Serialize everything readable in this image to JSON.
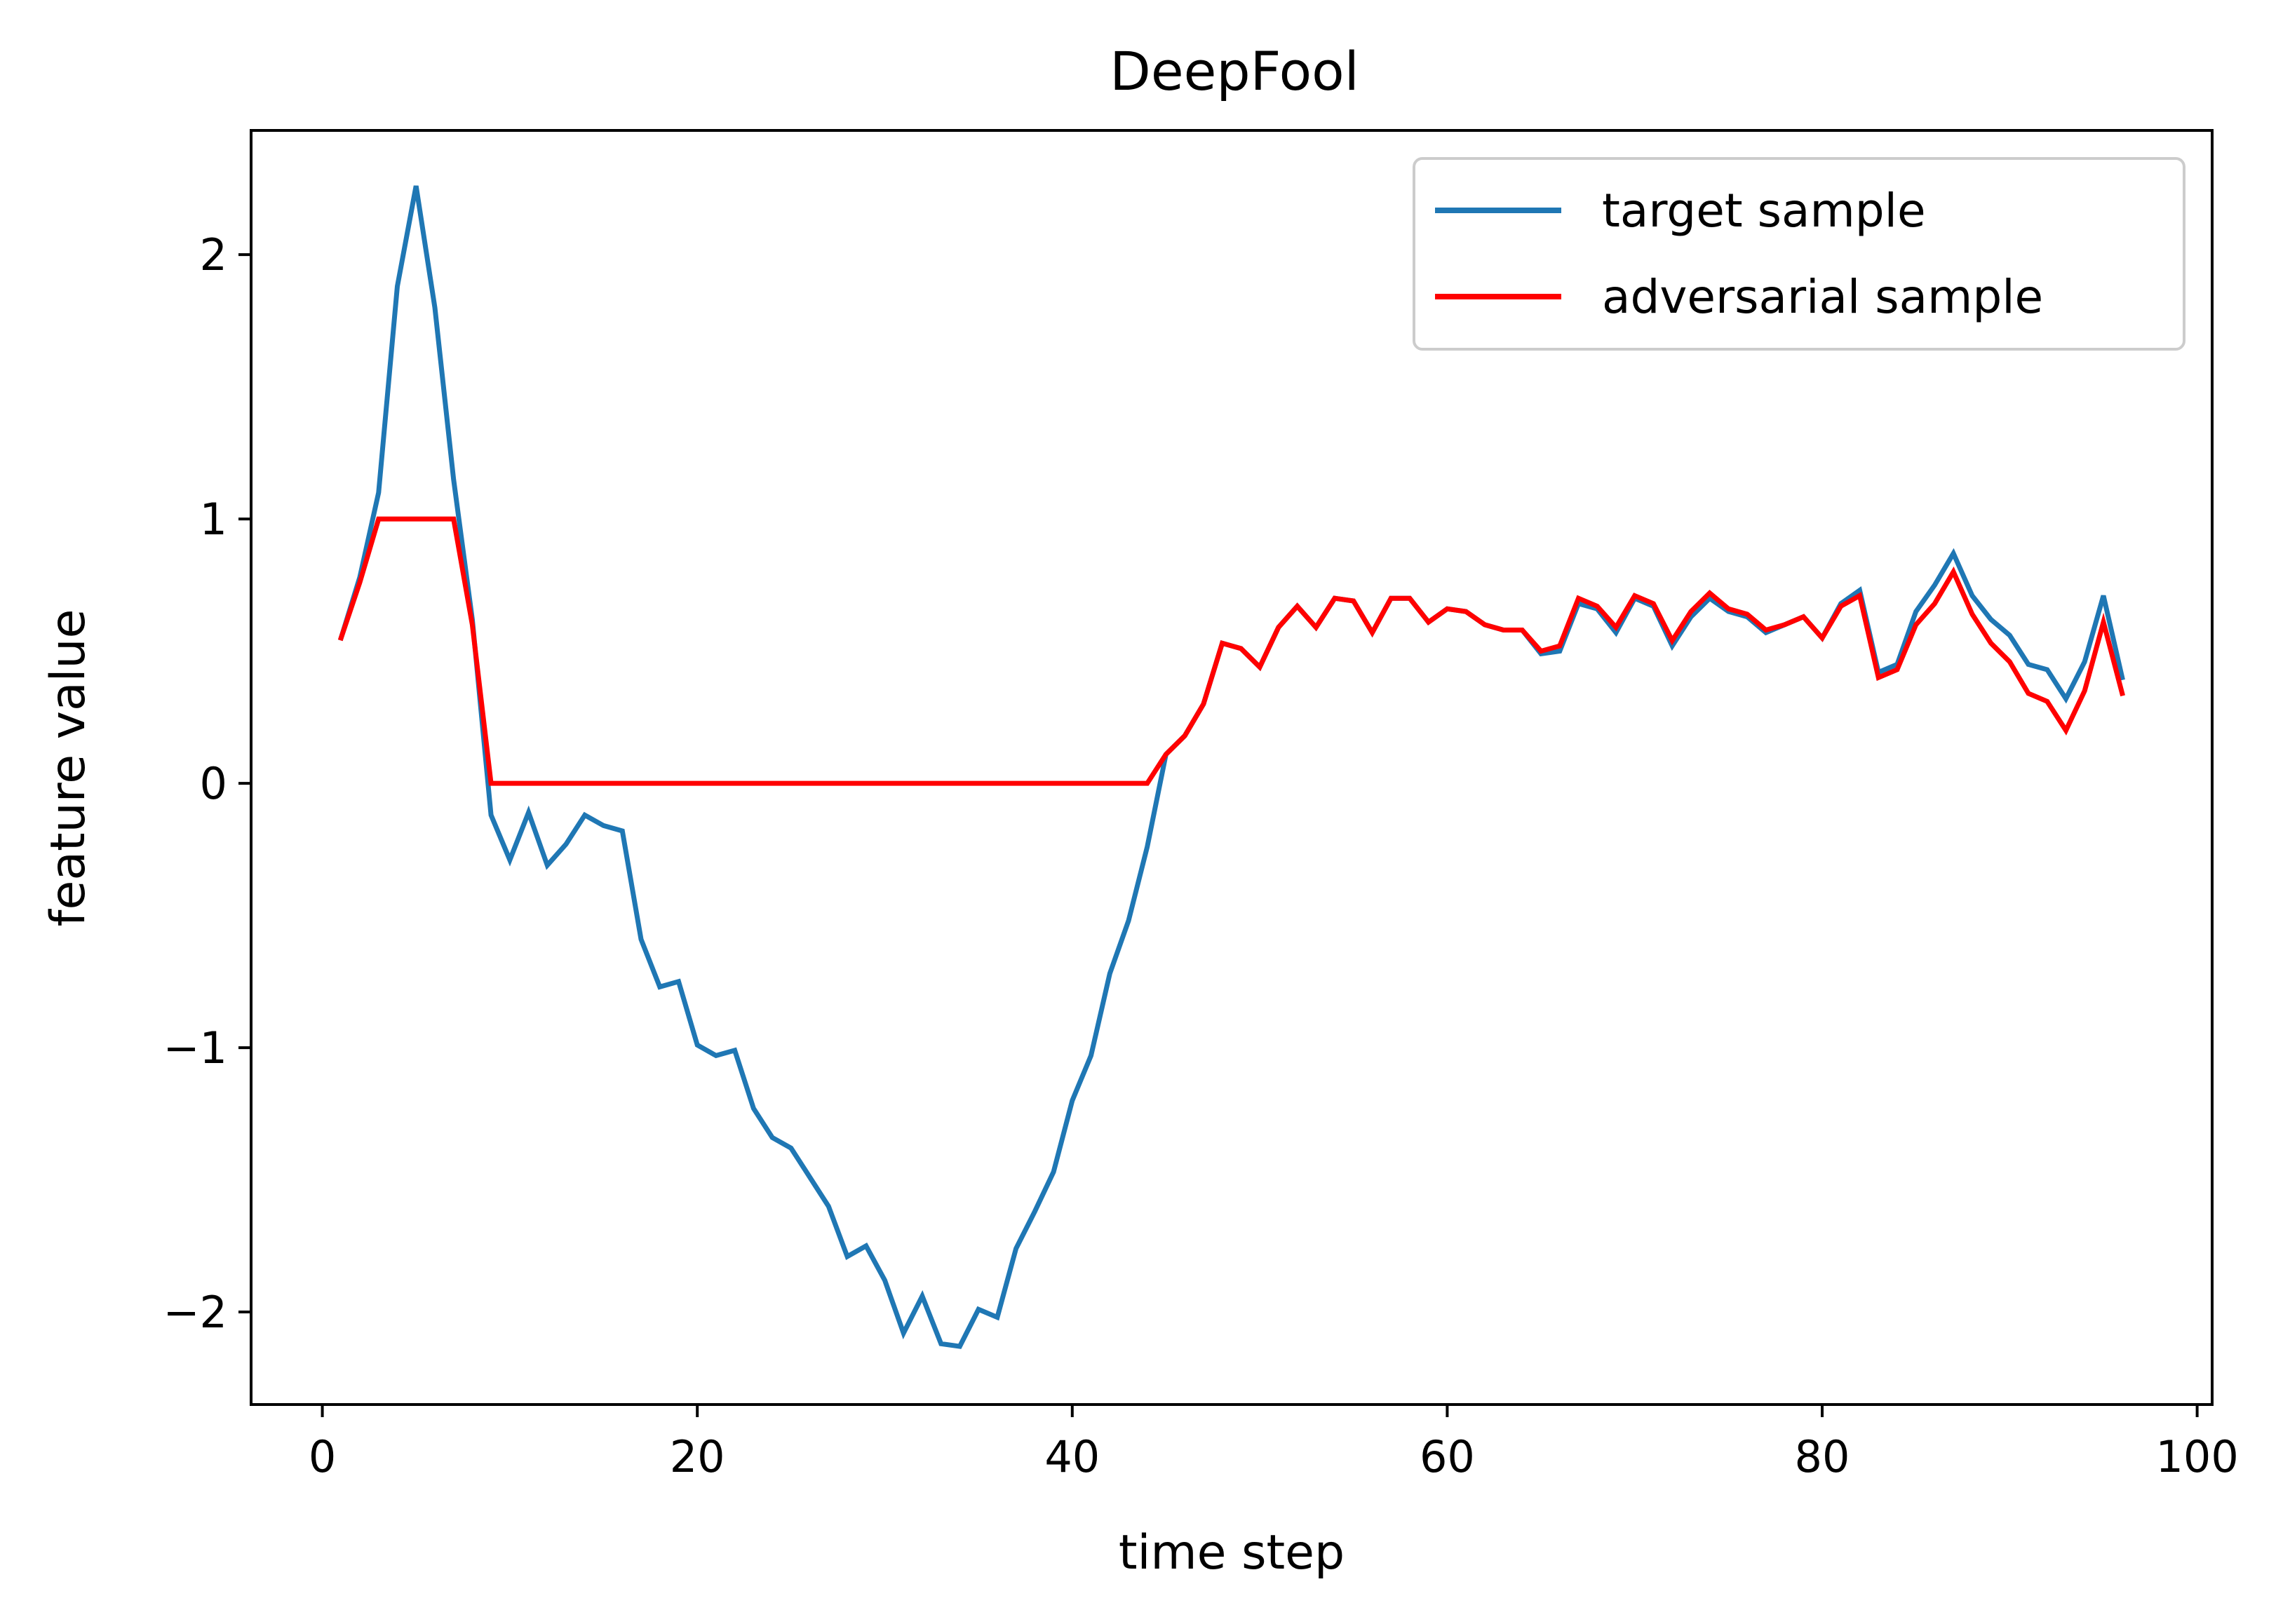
{
  "chart_data": {
    "type": "line",
    "title": "DeepFool",
    "xlabel": "time step",
    "ylabel": "feature value",
    "xlim": [
      -3.8,
      100.8
    ],
    "ylim": [
      -2.35,
      2.47
    ],
    "x_ticks": [
      0,
      20,
      40,
      60,
      80,
      100
    ],
    "x_tick_labels": [
      "0",
      "20",
      "40",
      "60",
      "80",
      "100"
    ],
    "y_ticks": [
      -2,
      -1,
      0,
      1,
      2
    ],
    "y_tick_labels": [
      "−2",
      "−1",
      "0",
      "1",
      "2"
    ],
    "grid": false,
    "legend_position": "top-right",
    "series": [
      {
        "name": "target sample",
        "color": "#1f77b4",
        "x": [
          1,
          2,
          3,
          4,
          5,
          6,
          7,
          8,
          9,
          10,
          11,
          12,
          13,
          14,
          15,
          16,
          17,
          18,
          19,
          20,
          21,
          22,
          23,
          24,
          25,
          26,
          27,
          28,
          29,
          30,
          31,
          32,
          33,
          34,
          35,
          36,
          37,
          38,
          39,
          40,
          41,
          42,
          43,
          44,
          45,
          46,
          47,
          48,
          49,
          50,
          51,
          52,
          53,
          54,
          55,
          56,
          57,
          58,
          59,
          60,
          61,
          62,
          63,
          64,
          65,
          66,
          67,
          68,
          69,
          70,
          71,
          72,
          73,
          74,
          75,
          76,
          77,
          78,
          79,
          80,
          81,
          82,
          83,
          84,
          85,
          86,
          87,
          88,
          89,
          90,
          91,
          92,
          93,
          94,
          95,
          96
        ],
        "y": [
          0.55,
          0.78,
          1.1,
          1.88,
          2.26,
          1.8,
          1.15,
          0.62,
          -0.12,
          -0.29,
          -0.11,
          -0.31,
          -0.23,
          -0.12,
          -0.16,
          -0.18,
          -0.59,
          -0.77,
          -0.75,
          -0.99,
          -1.03,
          -1.01,
          -1.23,
          -1.34,
          -1.38,
          -1.49,
          -1.6,
          -1.79,
          -1.75,
          -1.88,
          -2.08,
          -1.94,
          -2.12,
          -2.13,
          -1.99,
          -2.02,
          -1.76,
          -1.62,
          -1.47,
          -1.2,
          -1.03,
          -0.72,
          -0.52,
          -0.24,
          0.11,
          0.18,
          0.3,
          0.53,
          0.51,
          0.44,
          0.59,
          0.67,
          0.59,
          0.7,
          0.69,
          0.57,
          0.7,
          0.7,
          0.61,
          0.66,
          0.65,
          0.6,
          0.58,
          0.58,
          0.49,
          0.5,
          0.68,
          0.66,
          0.57,
          0.7,
          0.67,
          0.52,
          0.63,
          0.7,
          0.65,
          0.63,
          0.57,
          0.6,
          0.63,
          0.55,
          0.68,
          0.73,
          0.42,
          0.45,
          0.65,
          0.75,
          0.87,
          0.71,
          0.62,
          0.56,
          0.45,
          0.43,
          0.32,
          0.46,
          0.71,
          0.4
        ]
      },
      {
        "name": "adversarial sample",
        "color": "#ff0000",
        "x": [
          1,
          2,
          3,
          4,
          5,
          6,
          7,
          8,
          9,
          10,
          11,
          12,
          13,
          14,
          15,
          16,
          17,
          18,
          19,
          20,
          21,
          22,
          23,
          24,
          25,
          26,
          27,
          28,
          29,
          30,
          31,
          32,
          33,
          34,
          35,
          36,
          37,
          38,
          39,
          40,
          41,
          42,
          43,
          44,
          45,
          46,
          47,
          48,
          49,
          50,
          51,
          52,
          53,
          54,
          55,
          56,
          57,
          58,
          59,
          60,
          61,
          62,
          63,
          64,
          65,
          66,
          67,
          68,
          69,
          70,
          71,
          72,
          73,
          74,
          75,
          76,
          77,
          78,
          79,
          80,
          81,
          82,
          83,
          84,
          85,
          86,
          87,
          88,
          89,
          90,
          91,
          92,
          93,
          94,
          95,
          96
        ],
        "y": [
          0.55,
          0.76,
          1.0,
          1.0,
          1.0,
          1.0,
          1.0,
          0.6,
          0,
          0,
          0,
          0,
          0,
          0,
          0,
          0,
          0,
          0,
          0,
          0,
          0,
          0,
          0,
          0,
          0,
          0,
          0,
          0,
          0,
          0,
          0,
          0,
          0,
          0,
          0,
          0,
          0,
          0,
          0,
          0,
          0,
          0,
          0,
          0,
          0.11,
          0.18,
          0.3,
          0.53,
          0.51,
          0.44,
          0.59,
          0.67,
          0.59,
          0.7,
          0.69,
          0.57,
          0.7,
          0.7,
          0.61,
          0.66,
          0.65,
          0.6,
          0.58,
          0.58,
          0.5,
          0.52,
          0.7,
          0.67,
          0.59,
          0.71,
          0.68,
          0.54,
          0.65,
          0.72,
          0.66,
          0.64,
          0.58,
          0.6,
          0.63,
          0.55,
          0.67,
          0.71,
          0.4,
          0.43,
          0.6,
          0.68,
          0.8,
          0.64,
          0.53,
          0.46,
          0.34,
          0.31,
          0.2,
          0.35,
          0.61,
          0.34
        ]
      }
    ]
  }
}
